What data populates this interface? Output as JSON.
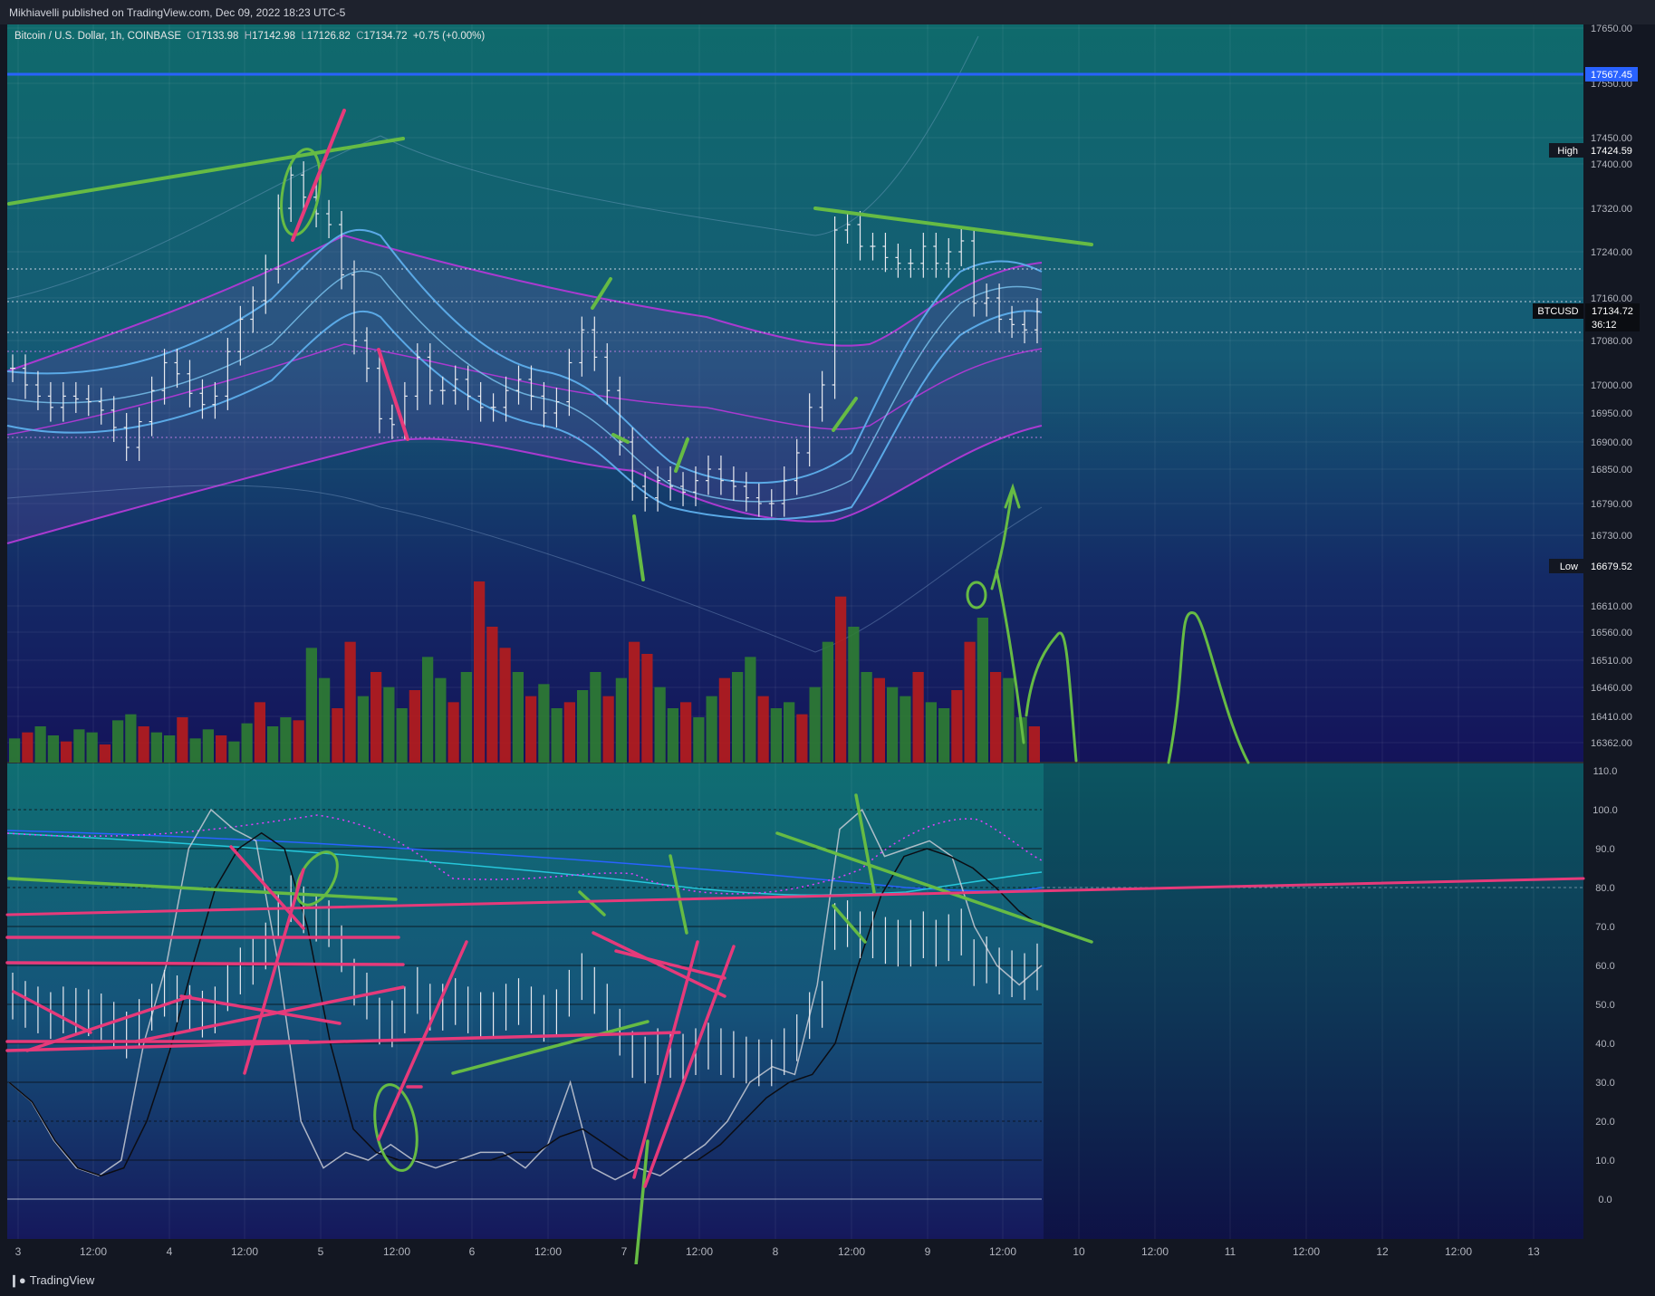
{
  "header": {
    "published": "Mikhiavelli published on TradingView.com, Dec 09, 2022 18:23 UTC-5"
  },
  "legend": {
    "symbol": "Bitcoin / U.S. Dollar, 1h, COINBASE",
    "open_label": "O",
    "open": "17133.98",
    "high_label": "H",
    "high": "17142.98",
    "low_label": "L",
    "low": "17126.82",
    "close_label": "C",
    "close": "17134.72",
    "change": "+0.75 (+0.00%)"
  },
  "badges": {
    "line_price": "17567.45",
    "high_label": "High",
    "high_value": "17424.59",
    "ticker": "BTCUSD",
    "last_price": "17134.72",
    "countdown": "36:12",
    "low_label": "Low",
    "low_value": "16679.52"
  },
  "footer": {
    "brand": "TradingView"
  },
  "colors": {
    "background": "#131722",
    "up": "#d1d4dc",
    "volume_up": "#2e7d32",
    "volume_down": "#b71c1c",
    "drawing_green": "#66bb44",
    "drawing_pink": "#e63a7a",
    "horizontal_line": "#2962ff",
    "ema": "#5aa9e6",
    "envelope": "#9c27b0"
  },
  "chart_data": [
    {
      "type": "candlestick",
      "title": "Bitcoin / U.S. Dollar, 1h, COINBASE",
      "x_ticks": [
        "3",
        "12:00",
        "4",
        "12:00",
        "5",
        "12:00",
        "6",
        "12:00",
        "7",
        "12:00",
        "8",
        "12:00",
        "9",
        "12:00",
        "10",
        "12:00",
        "11",
        "12:00",
        "12",
        "12:00",
        "13"
      ],
      "y_ticks": [
        "17650.00",
        "17550.00",
        "17450.00",
        "17400.00",
        "17320.00",
        "17240.00",
        "17160.00",
        "17080.00",
        "17000.00",
        "16950.00",
        "16900.00",
        "16850.00",
        "16790.00",
        "16730.00",
        "16610.00",
        "16560.00",
        "16510.00",
        "16460.00",
        "16410.00",
        "16362.00"
      ],
      "horizontal_line": 17567.45,
      "session_high": 17424.59,
      "session_low": 16679.52,
      "last": 17134.72,
      "series": [
        {
          "name": "BTCUSD close (approx.)",
          "values": [
            17030,
            17000,
            16980,
            16960,
            16980,
            16975,
            16970,
            16955,
            16925,
            16890,
            16935,
            16990,
            17040,
            17020,
            16985,
            16965,
            16980,
            17060,
            17120,
            17155,
            17210,
            17320,
            17380,
            17340,
            17310,
            17290,
            17200,
            17080,
            17030,
            16940,
            16930,
            16980,
            17050,
            16990,
            16990,
            17010,
            16980,
            16960,
            16960,
            16990,
            17010,
            16980,
            16950,
            16970,
            17040,
            17100,
            17050,
            16990,
            16900,
            16820,
            16800,
            16830,
            16820,
            16810,
            16830,
            16850,
            16830,
            16820,
            16800,
            16790,
            16790,
            16830,
            16880,
            16960,
            17000,
            17280,
            17290,
            17250,
            17250,
            17230,
            17220,
            17220,
            17250,
            17220,
            17240,
            17260,
            17150,
            17160,
            17120,
            17110,
            17100,
            17134.72
          ]
        },
        {
          "name": "EMA",
          "values": [
            16975,
            16960,
            16945,
            16925,
            16920,
            16925,
            16950,
            16970,
            16990,
            17030,
            17070,
            17130,
            17200,
            17230,
            17210,
            17170,
            17110,
            17060,
            17030,
            17000,
            16985,
            16975,
            16970,
            16975,
            16985,
            16990,
            16980,
            16940,
            16900,
            16870,
            16850,
            16835,
            16825,
            16815,
            16810,
            16815,
            16840,
            16900,
            17000,
            17080,
            17130,
            17150,
            17160,
            17150,
            17140,
            17135
          ]
        }
      ]
    },
    {
      "type": "bar",
      "title": "Volume",
      "colors": [
        "#2e7d32",
        "#b71c1c"
      ],
      "values": [
        8,
        10,
        12,
        9,
        7,
        11,
        10,
        6,
        14,
        16,
        12,
        10,
        9,
        15,
        8,
        11,
        9,
        7,
        13,
        20,
        12,
        15,
        14,
        38,
        28,
        18,
        40,
        22,
        30,
        25,
        18,
        24,
        35,
        28,
        20,
        30,
        60,
        45,
        38,
        30,
        22,
        26,
        18,
        20,
        24,
        30,
        22,
        28,
        40,
        36,
        25,
        18,
        20,
        15,
        22,
        28,
        30,
        35,
        22,
        18,
        20,
        16,
        25,
        40,
        55,
        45,
        30,
        28,
        25,
        22,
        30,
        20,
        18,
        24,
        40,
        48,
        30,
        28,
        15,
        12
      ]
    },
    {
      "type": "line",
      "title": "Oscillator",
      "ylim": [
        0,
        110
      ],
      "y_ticks": [
        "110.0",
        "100.0",
        "90.0",
        "80.0",
        "70.0",
        "60.0",
        "50.0",
        "40.0",
        "30.0",
        "20.0",
        "10.0",
        "0.0"
      ],
      "series": [
        {
          "name": "fast (white)",
          "values": [
            30,
            25,
            15,
            8,
            6,
            10,
            40,
            60,
            90,
            100,
            95,
            92,
            60,
            20,
            8,
            12,
            10,
            14,
            10,
            8,
            10,
            12,
            12,
            8,
            14,
            30,
            8,
            5,
            8,
            6,
            10,
            14,
            20,
            30,
            34,
            32,
            55,
            95,
            100,
            88,
            90,
            92,
            88,
            70,
            60,
            55,
            60
          ]
        },
        {
          "name": "slow (black)",
          "values": [
            30,
            25,
            15,
            8,
            6,
            8,
            20,
            38,
            60,
            80,
            90,
            94,
            90,
            70,
            40,
            18,
            12,
            10,
            10,
            10,
            10,
            10,
            12,
            12,
            16,
            18,
            14,
            10,
            10,
            10,
            10,
            14,
            20,
            26,
            30,
            32,
            40,
            60,
            78,
            88,
            90,
            88,
            85,
            80,
            74,
            70
          ]
        }
      ]
    }
  ]
}
